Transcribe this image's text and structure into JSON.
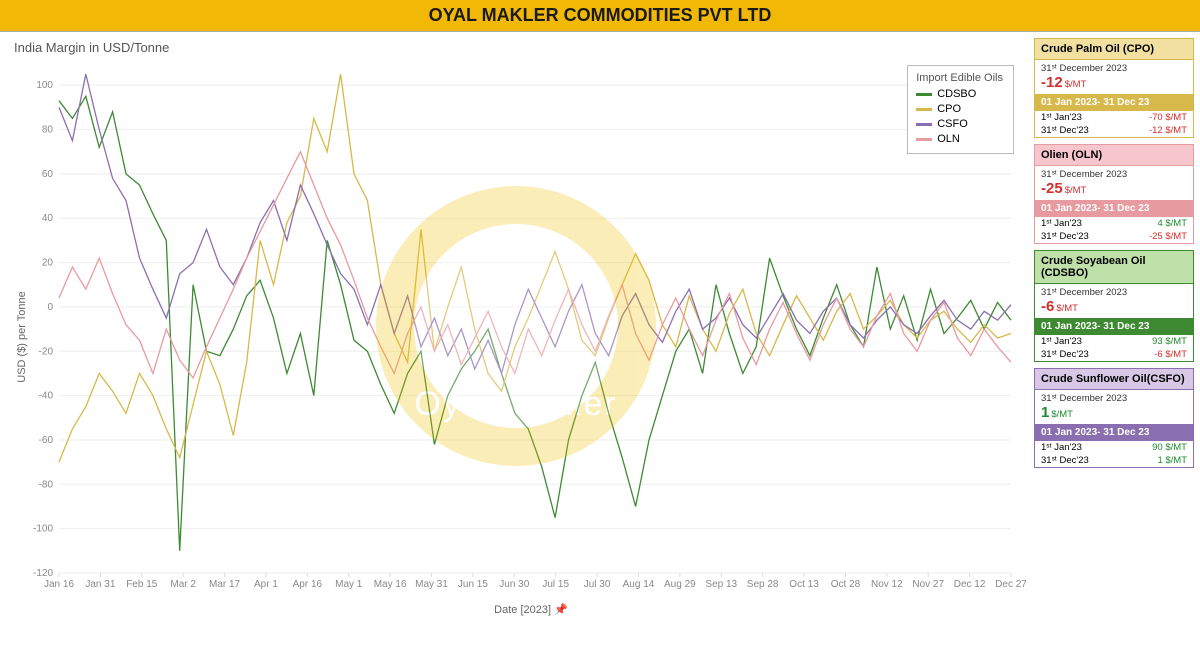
{
  "header": {
    "title": "OYAL MAKLER COMMODITIES PVT LTD",
    "bg_color": "#f2b806",
    "text_color": "#1a1a1a"
  },
  "watermark": {
    "circle_color": "#f2c200",
    "text": "Oyal Makler"
  },
  "chart": {
    "title": "India Margin in USD/Tonne",
    "type": "line",
    "ylabel": "USD ($) per Tonne",
    "xlabel": "Date [2023]",
    "xlabel_suffix_icon": "📌",
    "background_color": "#ffffff",
    "grid_color": "#eeeeee",
    "axis_text_color": "#888888",
    "x_ticks": [
      "Jan 16",
      "Jan 31",
      "Feb 15",
      "Mar 2",
      "Mar 17",
      "Apr 1",
      "Apr 16",
      "May 1",
      "May 16",
      "May 31",
      "Jun 15",
      "Jun 30",
      "Jul 15",
      "Jul 30",
      "Aug 14",
      "Aug 29",
      "Sep 13",
      "Sep 28",
      "Oct 13",
      "Oct 28",
      "Nov 12",
      "Nov 27",
      "Dec 12",
      "Dec 27"
    ],
    "ylim": [
      -120,
      110
    ],
    "ytick_step": 20,
    "n_points": 72,
    "legend": {
      "title": "Import Edible Oils",
      "items": [
        {
          "key": "CDSBO",
          "label": "CDSBO",
          "color": "#3e8a33"
        },
        {
          "key": "CPO",
          "label": "CPO",
          "color": "#d7b84a"
        },
        {
          "key": "CSFO",
          "label": "CSFO",
          "color": "#8a6fb0"
        },
        {
          "key": "OLN",
          "label": "OLN",
          "color": "#e79aa0"
        }
      ]
    },
    "series": {
      "CDSBO": {
        "color": "#3e8a33",
        "values": [
          93,
          85,
          95,
          72,
          88,
          60,
          55,
          42,
          30,
          -110,
          10,
          -20,
          -22,
          -10,
          5,
          12,
          -5,
          -30,
          -12,
          -40,
          30,
          10,
          -15,
          -20,
          -35,
          -48,
          -30,
          -20,
          -62,
          -40,
          -28,
          -20,
          -10,
          -30,
          -48,
          -55,
          -72,
          -95,
          -60,
          -40,
          -25,
          -48,
          -68,
          -90,
          -60,
          -40,
          -20,
          -10,
          -30,
          10,
          -12,
          -30,
          -18,
          22,
          5,
          -10,
          -22,
          -5,
          10,
          -8,
          -18,
          18,
          -10,
          5,
          -15,
          8,
          -12,
          -5,
          3,
          -10,
          2,
          -6
        ]
      },
      "CPO": {
        "color": "#d7b84a",
        "values": [
          -70,
          -55,
          -45,
          -30,
          -38,
          -48,
          -30,
          -40,
          -55,
          -68,
          -44,
          -20,
          -35,
          -58,
          -25,
          30,
          10,
          38,
          50,
          85,
          70,
          105,
          60,
          48,
          10,
          -12,
          -25,
          35,
          -20,
          0,
          18,
          -10,
          -30,
          -38,
          -18,
          -5,
          10,
          25,
          8,
          -15,
          -22,
          -5,
          10,
          24,
          12,
          -8,
          -18,
          5,
          -10,
          -20,
          -3,
          8,
          -12,
          -22,
          -8,
          5,
          -5,
          -15,
          -2,
          6,
          -10,
          -4,
          3,
          -8,
          -14,
          -6,
          -2,
          -10,
          -16,
          -8,
          -14,
          -12
        ]
      },
      "CSFO": {
        "color": "#8a6fb0",
        "values": [
          90,
          75,
          105,
          80,
          58,
          48,
          22,
          8,
          -5,
          15,
          20,
          35,
          18,
          10,
          22,
          38,
          48,
          30,
          55,
          42,
          28,
          15,
          8,
          -8,
          10,
          -12,
          5,
          -18,
          -5,
          -22,
          -10,
          -28,
          -15,
          -30,
          -8,
          8,
          -5,
          -18,
          -2,
          10,
          -12,
          -22,
          -4,
          6,
          -8,
          -16,
          -2,
          8,
          -10,
          -5,
          4,
          -8,
          -14,
          -4,
          6,
          -6,
          -12,
          -2,
          4,
          -8,
          -14,
          -6,
          0,
          -8,
          -12,
          -4,
          3,
          -6,
          -10,
          -2,
          -6,
          1
        ]
      },
      "OLN": {
        "color": "#e79aa0",
        "values": [
          4,
          18,
          8,
          22,
          6,
          -8,
          -15,
          -30,
          -10,
          -24,
          -32,
          -18,
          -5,
          8,
          22,
          34,
          46,
          58,
          70,
          55,
          40,
          28,
          12,
          -5,
          -18,
          -30,
          -12,
          0,
          -20,
          -8,
          -26,
          -14,
          -2,
          -18,
          -30,
          -10,
          -22,
          -6,
          8,
          -8,
          -20,
          -4,
          10,
          -12,
          -24,
          -8,
          4,
          -10,
          -22,
          -6,
          6,
          -14,
          -26,
          -10,
          2,
          -12,
          -24,
          -8,
          4,
          -10,
          -18,
          -4,
          6,
          -12,
          -20,
          -6,
          2,
          -14,
          -22,
          -10,
          -18,
          -25
        ]
      }
    }
  },
  "cards": [
    {
      "title": "Crude Palm Oil (CPO)",
      "header_bg": "#f1e0a0",
      "border": "#d7b84a",
      "band_bg": "#d7b84a",
      "date": "31ˢᵗ December 2023",
      "value": "-12",
      "value_color": "#d42e2e",
      "unit": "$/MT",
      "range": "01 Jan 2023- 31 Dec 23",
      "rows": [
        {
          "label": "1ˢᵗ Jan'23",
          "val": "-70 $/MT",
          "val_color": "#d42e2e"
        },
        {
          "label": "31ˢᵗ Dec'23",
          "val": "-12 $/MT",
          "val_color": "#d42e2e"
        }
      ]
    },
    {
      "title": "Olien (OLN)",
      "header_bg": "#f6c6cc",
      "border": "#e79aa0",
      "band_bg": "#e79aa0",
      "date": "31ˢᵗ December 2023",
      "value": "-25",
      "value_color": "#d42e2e",
      "unit": "$/MT",
      "range": "01 Jan 2023- 31 Dec 23",
      "rows": [
        {
          "label": "1ˢᵗ Jan'23",
          "val": "4 $/MT",
          "val_color": "#1e8a2e"
        },
        {
          "label": "31ˢᵗ Dec'23",
          "val": "-25 $/MT",
          "val_color": "#d42e2e"
        }
      ]
    },
    {
      "title": "Crude Soyabean Oil (CDSBO)",
      "header_bg": "#bfe0a8",
      "border": "#3e8a33",
      "band_bg": "#3e8a33",
      "date": "31ˢᵗ December 2023",
      "value": "-6",
      "value_color": "#d42e2e",
      "unit": "$/MT",
      "range": "01 Jan 2023- 31 Dec 23",
      "rows": [
        {
          "label": "1ˢᵗ Jan'23",
          "val": "93 $/MT",
          "val_color": "#1e8a2e"
        },
        {
          "label": "31ˢᵗ Dec'23",
          "val": "-6 $/MT",
          "val_color": "#d42e2e"
        }
      ]
    },
    {
      "title": "Crude Sunflower Oil(CSFO)",
      "header_bg": "#d8c8e6",
      "border": "#8a6fb0",
      "band_bg": "#8a6fb0",
      "date": "31ˢᵗ December 2023",
      "value": "1",
      "value_color": "#1e8a2e",
      "unit": "$/MT",
      "range": "01 Jan 2023- 31 Dec 23",
      "rows": [
        {
          "label": "1ˢᵗ Jan'23",
          "val": "90 $/MT",
          "val_color": "#1e8a2e"
        },
        {
          "label": "31ˢᵗ Dec'23",
          "val": "1 $/MT",
          "val_color": "#1e8a2e"
        }
      ]
    }
  ]
}
